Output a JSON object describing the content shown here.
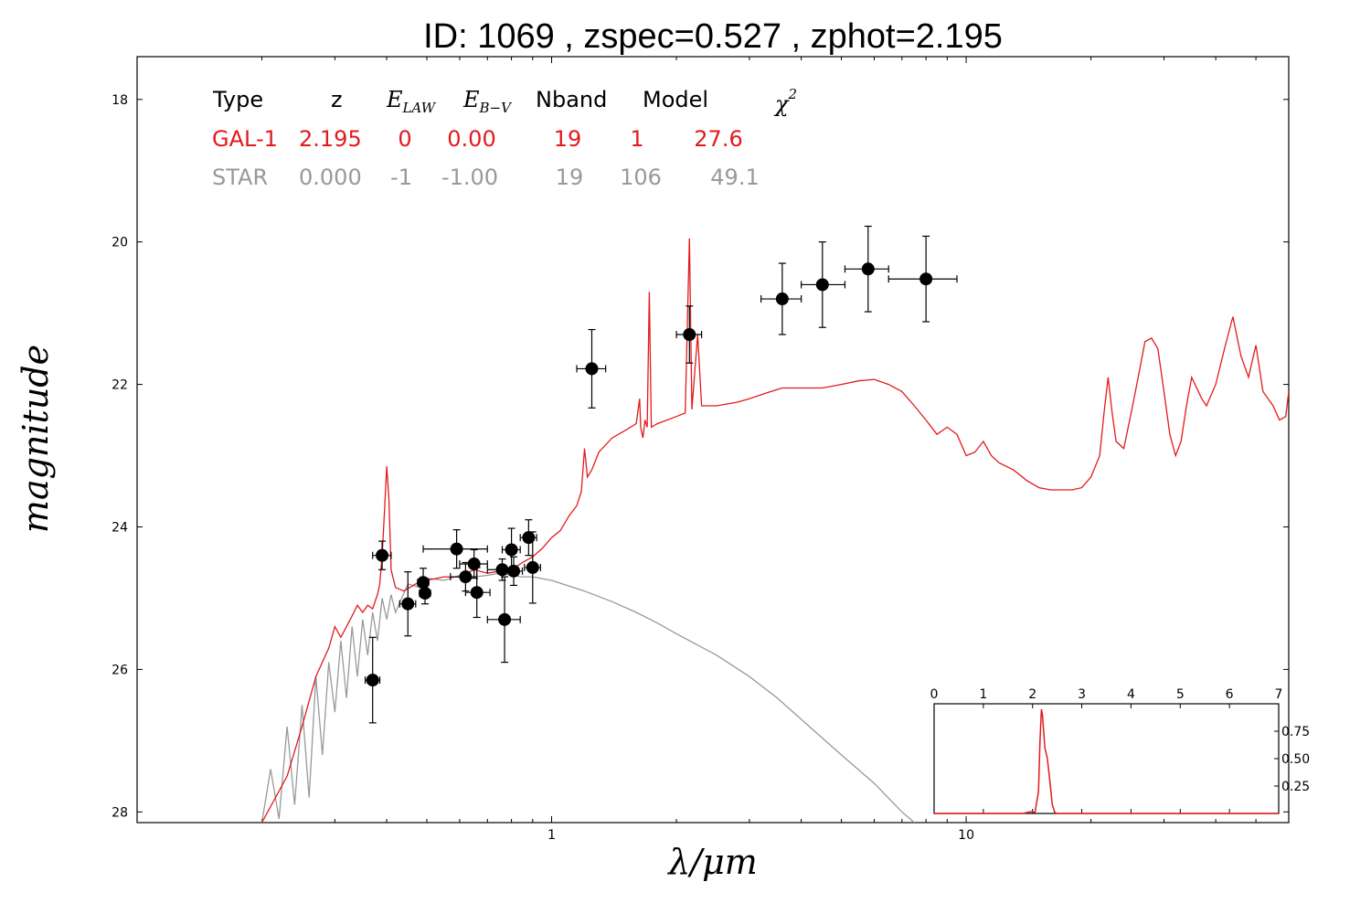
{
  "chart_data": [
    {
      "type": "scatter",
      "title": "ID:  1069  , zspec=0.527 , zphot=2.195",
      "xlabel": "λ/μm",
      "ylabel": "magnitude",
      "xscale": "log",
      "xlim": [
        0.1,
        60
      ],
      "ylim": [
        28.15,
        17.4
      ],
      "y_inverted": true,
      "x_ticks": [
        {
          "value": 1,
          "label": "1"
        },
        {
          "value": 10,
          "label": "10"
        }
      ],
      "y_ticks": [
        {
          "value": 18,
          "label": "18"
        },
        {
          "value": 20,
          "label": "20"
        },
        {
          "value": 22,
          "label": "22"
        },
        {
          "value": 24,
          "label": "24"
        },
        {
          "value": 26,
          "label": "26"
        },
        {
          "value": 28,
          "label": "28"
        }
      ],
      "colors": {
        "galaxy": "#e31a1c",
        "star": "#999999",
        "points": "#000000"
      },
      "fit_table": {
        "headers": {
          "type": "Type",
          "z": "z",
          "e_law": "E",
          "e_law_sub": "LAW",
          "e_bv": "E",
          "e_bv_sub": "B−V",
          "nband": "Nband",
          "model": "Model",
          "chi2": "χ",
          "chi2_sup": "2"
        },
        "rows": [
          {
            "type": "GAL-1",
            "z": "2.195",
            "e_law": "0",
            "e_bv": "0.00",
            "nband": "19",
            "model": "1",
            "chi2": "27.6"
          },
          {
            "type": "STAR",
            "z": "0.000",
            "e_law": "-1",
            "e_bv": "-1.00",
            "nband": "19",
            "model": "106",
            "chi2": "49.1"
          }
        ]
      },
      "series": [
        {
          "kind": "points",
          "points": [
            {
              "x": 0.37,
              "y": 26.15,
              "xerr": [
                0.355,
                0.385
              ],
              "yerr": 0.6
            },
            {
              "x": 0.39,
              "y": 24.4,
              "xerr": [
                0.37,
                0.41
              ],
              "yerr": 0.2
            },
            {
              "x": 0.45,
              "y": 25.08,
              "xerr": [
                0.43,
                0.47
              ],
              "yerr": 0.45
            },
            {
              "x": 0.49,
              "y": 24.78,
              "xerr": [
                0.475,
                0.505
              ],
              "yerr": 0.2
            },
            {
              "x": 0.495,
              "y": 24.93,
              "xerr": [
                0.48,
                0.51
              ],
              "yerr": 0.15
            },
            {
              "x": 0.59,
              "y": 24.31,
              "xerr": [
                0.49,
                0.7
              ],
              "yerr": 0.27
            },
            {
              "x": 0.62,
              "y": 24.7,
              "xerr": [
                0.57,
                0.66
              ],
              "yerr": 0.2
            },
            {
              "x": 0.65,
              "y": 24.52,
              "xerr": [
                0.6,
                0.7
              ],
              "yerr": 0.2
            },
            {
              "x": 0.66,
              "y": 24.92,
              "xerr": [
                0.62,
                0.71
              ],
              "yerr": 0.35
            },
            {
              "x": 0.76,
              "y": 24.6,
              "xerr": [
                0.7,
                0.82
              ],
              "yerr": 0.15
            },
            {
              "x": 0.77,
              "y": 25.3,
              "xerr": [
                0.7,
                0.84
              ],
              "yerr": 0.6
            },
            {
              "x": 0.8,
              "y": 24.32,
              "xerr": [
                0.76,
                0.84
              ],
              "yerr": 0.3
            },
            {
              "x": 0.81,
              "y": 24.62,
              "xerr": [
                0.77,
                0.85
              ],
              "yerr": 0.2
            },
            {
              "x": 0.88,
              "y": 24.15,
              "xerr": [
                0.84,
                0.92
              ],
              "yerr": 0.25
            },
            {
              "x": 0.9,
              "y": 24.57,
              "xerr": [
                0.86,
                0.94
              ],
              "yerr": 0.5
            },
            {
              "x": 1.25,
              "y": 21.78,
              "xerr": [
                1.15,
                1.35
              ],
              "yerr": 0.55
            },
            {
              "x": 2.15,
              "y": 21.3,
              "xerr": [
                2.0,
                2.3
              ],
              "yerr": 0.4
            },
            {
              "x": 3.6,
              "y": 20.8,
              "xerr": [
                3.2,
                4.0
              ],
              "yerr": 0.5
            },
            {
              "x": 4.5,
              "y": 20.6,
              "xerr": [
                4.0,
                5.1
              ],
              "yerr": 0.6
            },
            {
              "x": 5.8,
              "y": 20.38,
              "xerr": [
                5.1,
                6.5
              ],
              "yerr": 0.6
            },
            {
              "x": 8.0,
              "y": 20.52,
              "xerr": [
                6.5,
                9.5
              ],
              "yerr": 0.6
            }
          ]
        },
        {
          "kind": "galaxy-template",
          "points": [
            [
              0.2,
              28.15
            ],
            [
              0.23,
              27.5
            ],
            [
              0.25,
              26.8
            ],
            [
              0.27,
              26.1
            ],
            [
              0.29,
              25.7
            ],
            [
              0.3,
              25.4
            ],
            [
              0.31,
              25.55
            ],
            [
              0.32,
              25.4
            ],
            [
              0.33,
              25.25
            ],
            [
              0.34,
              25.1
            ],
            [
              0.35,
              25.2
            ],
            [
              0.36,
              25.1
            ],
            [
              0.37,
              25.15
            ],
            [
              0.38,
              24.95
            ],
            [
              0.385,
              24.8
            ],
            [
              0.39,
              24.4
            ],
            [
              0.395,
              23.8
            ],
            [
              0.4,
              23.15
            ],
            [
              0.405,
              23.6
            ],
            [
              0.41,
              24.6
            ],
            [
              0.42,
              24.85
            ],
            [
              0.44,
              24.9
            ],
            [
              0.47,
              24.8
            ],
            [
              0.5,
              24.75
            ],
            [
              0.55,
              24.7
            ],
            [
              0.6,
              24.7
            ],
            [
              0.65,
              24.6
            ],
            [
              0.7,
              24.65
            ],
            [
              0.75,
              24.62
            ],
            [
              0.8,
              24.6
            ],
            [
              0.85,
              24.5
            ],
            [
              0.9,
              24.42
            ],
            [
              0.95,
              24.3
            ],
            [
              1.0,
              24.15
            ],
            [
              1.05,
              24.05
            ],
            [
              1.1,
              23.85
            ],
            [
              1.15,
              23.7
            ],
            [
              1.18,
              23.5
            ],
            [
              1.2,
              22.9
            ],
            [
              1.22,
              23.3
            ],
            [
              1.25,
              23.2
            ],
            [
              1.3,
              22.95
            ],
            [
              1.4,
              22.75
            ],
            [
              1.5,
              22.65
            ],
            [
              1.6,
              22.55
            ],
            [
              1.63,
              22.2
            ],
            [
              1.64,
              22.6
            ],
            [
              1.66,
              22.75
            ],
            [
              1.68,
              22.5
            ],
            [
              1.7,
              22.6
            ],
            [
              1.72,
              20.7
            ],
            [
              1.74,
              22.6
            ],
            [
              1.8,
              22.55
            ],
            [
              2.0,
              22.45
            ],
            [
              2.1,
              22.4
            ],
            [
              2.15,
              19.95
            ],
            [
              2.18,
              22.35
            ],
            [
              2.25,
              21.3
            ],
            [
              2.3,
              22.3
            ],
            [
              2.5,
              22.3
            ],
            [
              2.8,
              22.25
            ],
            [
              3.0,
              22.2
            ],
            [
              3.3,
              22.12
            ],
            [
              3.6,
              22.05
            ],
            [
              4.0,
              22.05
            ],
            [
              4.5,
              22.05
            ],
            [
              5.0,
              22.0
            ],
            [
              5.5,
              21.95
            ],
            [
              6.0,
              21.93
            ],
            [
              6.5,
              22.0
            ],
            [
              7.0,
              22.1
            ],
            [
              7.5,
              22.3
            ],
            [
              8.0,
              22.5
            ],
            [
              8.5,
              22.7
            ],
            [
              9.0,
              22.6
            ],
            [
              9.5,
              22.7
            ],
            [
              10.0,
              23.0
            ],
            [
              10.5,
              22.95
            ],
            [
              11.0,
              22.8
            ],
            [
              11.5,
              23.0
            ],
            [
              12.0,
              23.1
            ],
            [
              13.0,
              23.2
            ],
            [
              14.0,
              23.35
            ],
            [
              15.0,
              23.45
            ],
            [
              16.0,
              23.48
            ],
            [
              18.0,
              23.48
            ],
            [
              19.0,
              23.45
            ],
            [
              20.0,
              23.3
            ],
            [
              21.0,
              23.0
            ],
            [
              21.5,
              22.4
            ],
            [
              22.0,
              21.9
            ],
            [
              22.5,
              22.4
            ],
            [
              23.0,
              22.8
            ],
            [
              24.0,
              22.9
            ],
            [
              25.0,
              22.4
            ],
            [
              26.0,
              21.9
            ],
            [
              27.0,
              21.4
            ],
            [
              28.0,
              21.35
            ],
            [
              29.0,
              21.5
            ],
            [
              30.0,
              22.1
            ],
            [
              31.0,
              22.7
            ],
            [
              32.0,
              23.0
            ],
            [
              33.0,
              22.8
            ],
            [
              34.0,
              22.3
            ],
            [
              35.0,
              21.9
            ],
            [
              37.0,
              22.2
            ],
            [
              38.0,
              22.3
            ],
            [
              40.0,
              22.0
            ],
            [
              42.0,
              21.5
            ],
            [
              44.0,
              21.05
            ],
            [
              46.0,
              21.6
            ],
            [
              48.0,
              21.9
            ],
            [
              50.0,
              21.45
            ],
            [
              52.0,
              22.1
            ],
            [
              55.0,
              22.3
            ],
            [
              57.0,
              22.5
            ],
            [
              59.0,
              22.45
            ],
            [
              60.0,
              22.1
            ]
          ]
        },
        {
          "kind": "star-template",
          "points": [
            [
              0.2,
              28.15
            ],
            [
              0.21,
              27.4
            ],
            [
              0.22,
              28.1
            ],
            [
              0.23,
              26.8
            ],
            [
              0.24,
              27.9
            ],
            [
              0.25,
              26.5
            ],
            [
              0.26,
              27.8
            ],
            [
              0.27,
              26.1
            ],
            [
              0.28,
              27.2
            ],
            [
              0.29,
              25.9
            ],
            [
              0.3,
              26.6
            ],
            [
              0.31,
              25.6
            ],
            [
              0.32,
              26.4
            ],
            [
              0.33,
              25.4
            ],
            [
              0.34,
              26.1
            ],
            [
              0.35,
              25.3
            ],
            [
              0.36,
              25.8
            ],
            [
              0.37,
              25.2
            ],
            [
              0.38,
              25.6
            ],
            [
              0.39,
              25.0
            ],
            [
              0.4,
              25.3
            ],
            [
              0.41,
              24.95
            ],
            [
              0.42,
              25.2
            ],
            [
              0.45,
              24.8
            ],
            [
              0.48,
              24.85
            ],
            [
              0.5,
              24.72
            ],
            [
              0.55,
              24.75
            ],
            [
              0.6,
              24.68
            ],
            [
              0.65,
              24.7
            ],
            [
              0.7,
              24.68
            ],
            [
              0.75,
              24.65
            ],
            [
              0.8,
              24.68
            ],
            [
              0.85,
              24.7
            ],
            [
              0.9,
              24.7
            ],
            [
              1.0,
              24.75
            ],
            [
              1.2,
              24.9
            ],
            [
              1.4,
              25.05
            ],
            [
              1.6,
              25.2
            ],
            [
              1.8,
              25.35
            ],
            [
              2.0,
              25.5
            ],
            [
              2.5,
              25.8
            ],
            [
              3.0,
              26.1
            ],
            [
              3.5,
              26.4
            ],
            [
              4.0,
              26.7
            ],
            [
              5.0,
              27.2
            ],
            [
              6.0,
              27.6
            ],
            [
              7.0,
              28.0
            ],
            [
              7.5,
              28.15
            ]
          ]
        }
      ]
    },
    {
      "type": "line",
      "title": "",
      "xlabel": "",
      "ylabel": "",
      "xlim": [
        0,
        7
      ],
      "ylim": [
        0,
        1
      ],
      "x_ticks": [
        {
          "value": 0,
          "label": "0"
        },
        {
          "value": 1,
          "label": "1"
        },
        {
          "value": 2,
          "label": "2"
        },
        {
          "value": 3,
          "label": "3"
        },
        {
          "value": 4,
          "label": "4"
        },
        {
          "value": 5,
          "label": "5"
        },
        {
          "value": 6,
          "label": "6"
        },
        {
          "value": 7,
          "label": "7"
        }
      ],
      "y_ticks": [
        {
          "value": 0.25,
          "label": "0.25"
        },
        {
          "value": 0.5,
          "label": "0.50"
        },
        {
          "value": 0.75,
          "label": "0.75"
        }
      ],
      "series": [
        {
          "color": "#e31a1c",
          "x": [
            0,
            1.8,
            1.95,
            2.05,
            2.12,
            2.15,
            2.18,
            2.2,
            2.25,
            2.3,
            2.35,
            2.4,
            2.45,
            2.5,
            7.0
          ],
          "y": [
            0.0,
            0.0,
            0.015,
            0.01,
            0.2,
            0.65,
            0.95,
            0.9,
            0.6,
            0.5,
            0.3,
            0.08,
            0.01,
            0.0,
            0.0
          ]
        }
      ]
    }
  ]
}
